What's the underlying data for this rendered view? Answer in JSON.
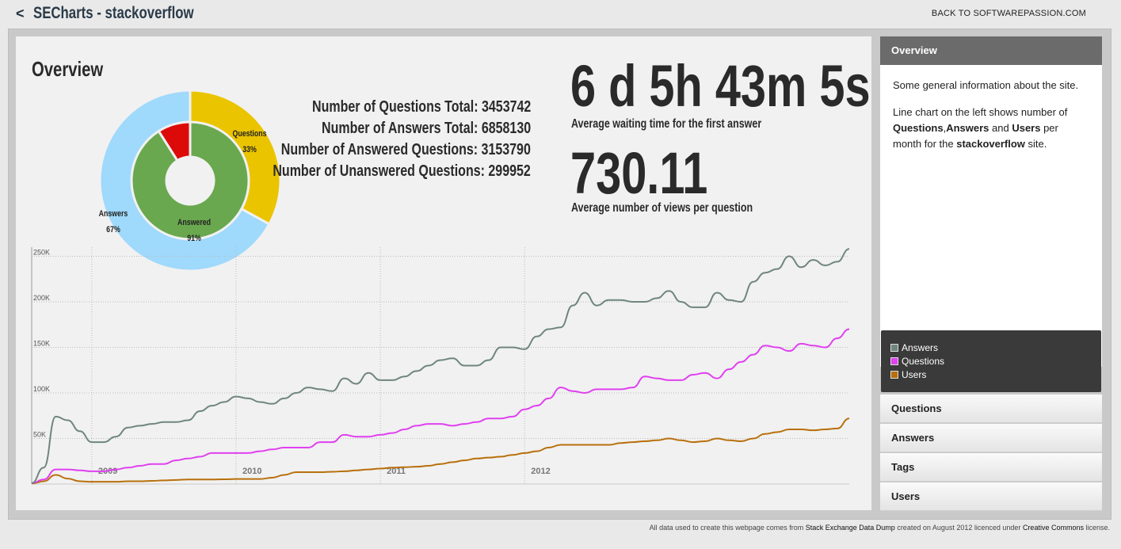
{
  "header": {
    "back_arrow": "<",
    "title": "SECharts - stackoverflow",
    "back_link": "BACK TO SOFTWAREPASSION.COM"
  },
  "overview": {
    "title": "Overview",
    "stats": [
      {
        "label": "Number of Questions Total:",
        "value": "3453742"
      },
      {
        "label": "Number of Answers Total:",
        "value": "6858130"
      },
      {
        "label": "Number of Answered Questions:",
        "value": "3153790"
      },
      {
        "label": "Number of Unanswered Questions:",
        "value": "299952"
      }
    ],
    "wait_time": "6 d 5h 43m 5s",
    "wait_caption": "Average waiting time for the first answer",
    "views": "730.11",
    "views_caption": "Average number of views per question"
  },
  "sidebar": {
    "overview_label": "Overview",
    "desc1": "Some general information about the site.",
    "desc2_a": "Line chart on the left shows number of ",
    "desc2_q": "Questions",
    "desc2_comma": ",",
    "desc2_ans": "Answers",
    "desc2_and": " and ",
    "desc2_users": "Users",
    "desc2_b": " per month for the ",
    "desc2_site": "stackoverflow",
    "desc2_c": " site.",
    "legend": [
      {
        "name": "Answers",
        "color": "#6f8580"
      },
      {
        "name": "Questions",
        "color": "#e040f0"
      },
      {
        "name": "Users",
        "color": "#b8700c"
      }
    ],
    "sections": [
      "Questions",
      "Answers",
      "Tags",
      "Users"
    ]
  },
  "footer": {
    "t1": "All data used to create this webpage comes from ",
    "l1": "Stack Exchange Data Dump",
    "t2": " created on August 2012 licenced under ",
    "l2": "Creative Commons",
    "t3": " license."
  },
  "chart_data": [
    {
      "type": "pie",
      "title": "",
      "rings": [
        {
          "ring": "outer",
          "slices": [
            {
              "label": "Questions",
              "value": 33,
              "display": "33%",
              "color": "#ebc400"
            },
            {
              "label": "Answers",
              "value": 67,
              "display": "67%",
              "color": "#9fd9fb"
            }
          ]
        },
        {
          "ring": "inner",
          "slices": [
            {
              "label": "Answered",
              "value": 91,
              "display": "91%",
              "color": "#6aa84f"
            },
            {
              "label": "",
              "value": 9,
              "display": "",
              "color": "#dd0a0a"
            }
          ]
        }
      ]
    },
    {
      "type": "line",
      "title": "",
      "xlabel": "",
      "ylabel": "",
      "x_start": "2008-08",
      "x_ticks": [
        "2009",
        "2010",
        "2011",
        "2012"
      ],
      "y_ticks": [
        "50K",
        "100K",
        "150K",
        "200K",
        "250K"
      ],
      "ylim": [
        0,
        260000
      ],
      "grid": true,
      "legend": "sidebar",
      "series": [
        {
          "name": "Answers",
          "color": "#6f8580",
          "values": [
            1000,
            18000,
            74000,
            70000,
            58000,
            46000,
            46000,
            52000,
            62000,
            64000,
            66000,
            68000,
            68000,
            70000,
            80000,
            86000,
            90000,
            96000,
            94000,
            90000,
            88000,
            94000,
            100000,
            106000,
            104000,
            102000,
            116000,
            110000,
            122000,
            114000,
            114000,
            118000,
            124000,
            130000,
            136000,
            138000,
            130000,
            130000,
            136000,
            150000,
            150000,
            148000,
            162000,
            170000,
            172000,
            196000,
            210000,
            196000,
            202000,
            202000,
            200000,
            200000,
            204000,
            212000,
            200000,
            194000,
            194000,
            210000,
            202000,
            200000,
            222000,
            232000,
            236000,
            250000,
            238000,
            246000,
            240000,
            244000,
            258000
          ]
        },
        {
          "name": "Questions",
          "color": "#e040f0",
          "values": [
            1000,
            5000,
            16000,
            16000,
            15000,
            14000,
            14000,
            16000,
            18000,
            20000,
            22000,
            22000,
            26000,
            28000,
            30000,
            34000,
            34000,
            34000,
            34000,
            36000,
            38000,
            40000,
            40000,
            40000,
            46000,
            46000,
            54000,
            52000,
            52000,
            54000,
            56000,
            60000,
            64000,
            66000,
            66000,
            64000,
            66000,
            68000,
            72000,
            72000,
            74000,
            82000,
            86000,
            94000,
            106000,
            102000,
            100000,
            104000,
            104000,
            104000,
            106000,
            118000,
            116000,
            114000,
            114000,
            120000,
            122000,
            116000,
            126000,
            134000,
            142000,
            152000,
            150000,
            146000,
            154000,
            152000,
            150000,
            160000,
            170000
          ]
        },
        {
          "name": "Users",
          "color": "#b8700c",
          "values": [
            500,
            3000,
            10000,
            6000,
            3000,
            2500,
            2500,
            2500,
            3000,
            3000,
            3500,
            4000,
            4500,
            5000,
            5000,
            5000,
            5200,
            5500,
            5500,
            5500,
            7000,
            10000,
            13000,
            13000,
            13000,
            13500,
            14000,
            15000,
            16000,
            17000,
            18000,
            18500,
            19000,
            20000,
            22000,
            24000,
            26000,
            28000,
            29000,
            30000,
            32000,
            34000,
            36000,
            40000,
            43000,
            43000,
            43000,
            43000,
            43000,
            45000,
            46000,
            47000,
            48000,
            50000,
            48000,
            46000,
            47000,
            50000,
            48000,
            47000,
            50000,
            55000,
            57000,
            60000,
            60000,
            59000,
            60000,
            61000,
            72000
          ]
        }
      ]
    }
  ]
}
